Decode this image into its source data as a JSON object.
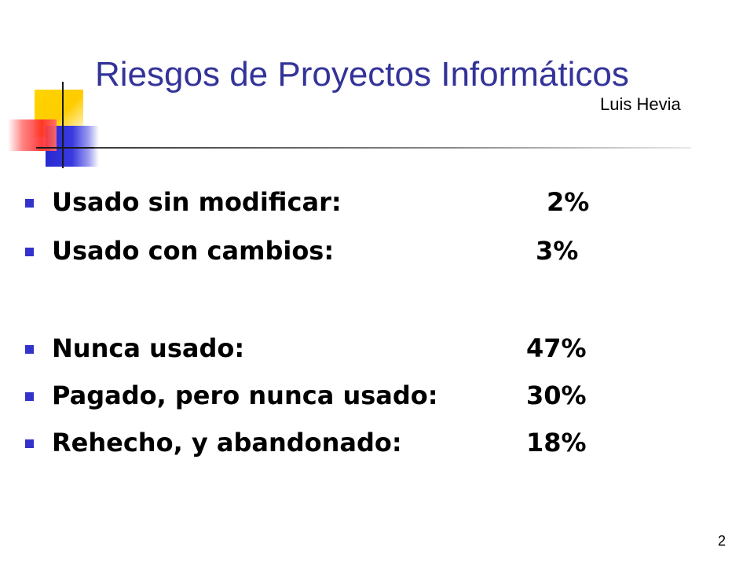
{
  "slide": {
    "title": "Riesgos de Proyectos Informáticos",
    "author": "Luis Hevia",
    "page_number": "2",
    "colors": {
      "title": "#333399",
      "bullet": "#3333cc",
      "accent_yellow": "#ffcc00",
      "accent_red": "#ff2a2a",
      "accent_blue": "#3a3ae0"
    },
    "items": [
      {
        "label": "Usado sin modificar:",
        "value": "2%"
      },
      {
        "label": "Usado con cambios:",
        "value": "3%"
      },
      {
        "label": "Nunca usado:",
        "value": "47%"
      },
      {
        "label": "Pagado, pero nunca usado:",
        "value": "30%"
      },
      {
        "label": "Rehecho, y abandonado:",
        "value": "18%"
      }
    ]
  }
}
